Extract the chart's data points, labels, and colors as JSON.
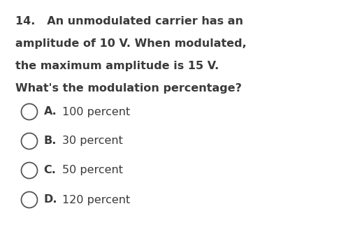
{
  "background_color": "#ffffff",
  "question_text_lines": [
    "14.   An unmodulated carrier has an",
    "amplitude of 10 V. When modulated,",
    "the maximum amplitude is 15 V.",
    "What's the modulation percentage?"
  ],
  "options": [
    {
      "label": "A.",
      "text": "100 percent"
    },
    {
      "label": "B.",
      "text": "30 percent"
    },
    {
      "label": "C.",
      "text": "50 percent"
    },
    {
      "label": "D.",
      "text": "120 percent"
    }
  ],
  "text_color": "#3a3a3a",
  "circle_color": "#555555",
  "font_size_question": 11.5,
  "font_size_options": 11.5,
  "fig_width": 5.18,
  "fig_height": 3.45,
  "dpi": 100
}
